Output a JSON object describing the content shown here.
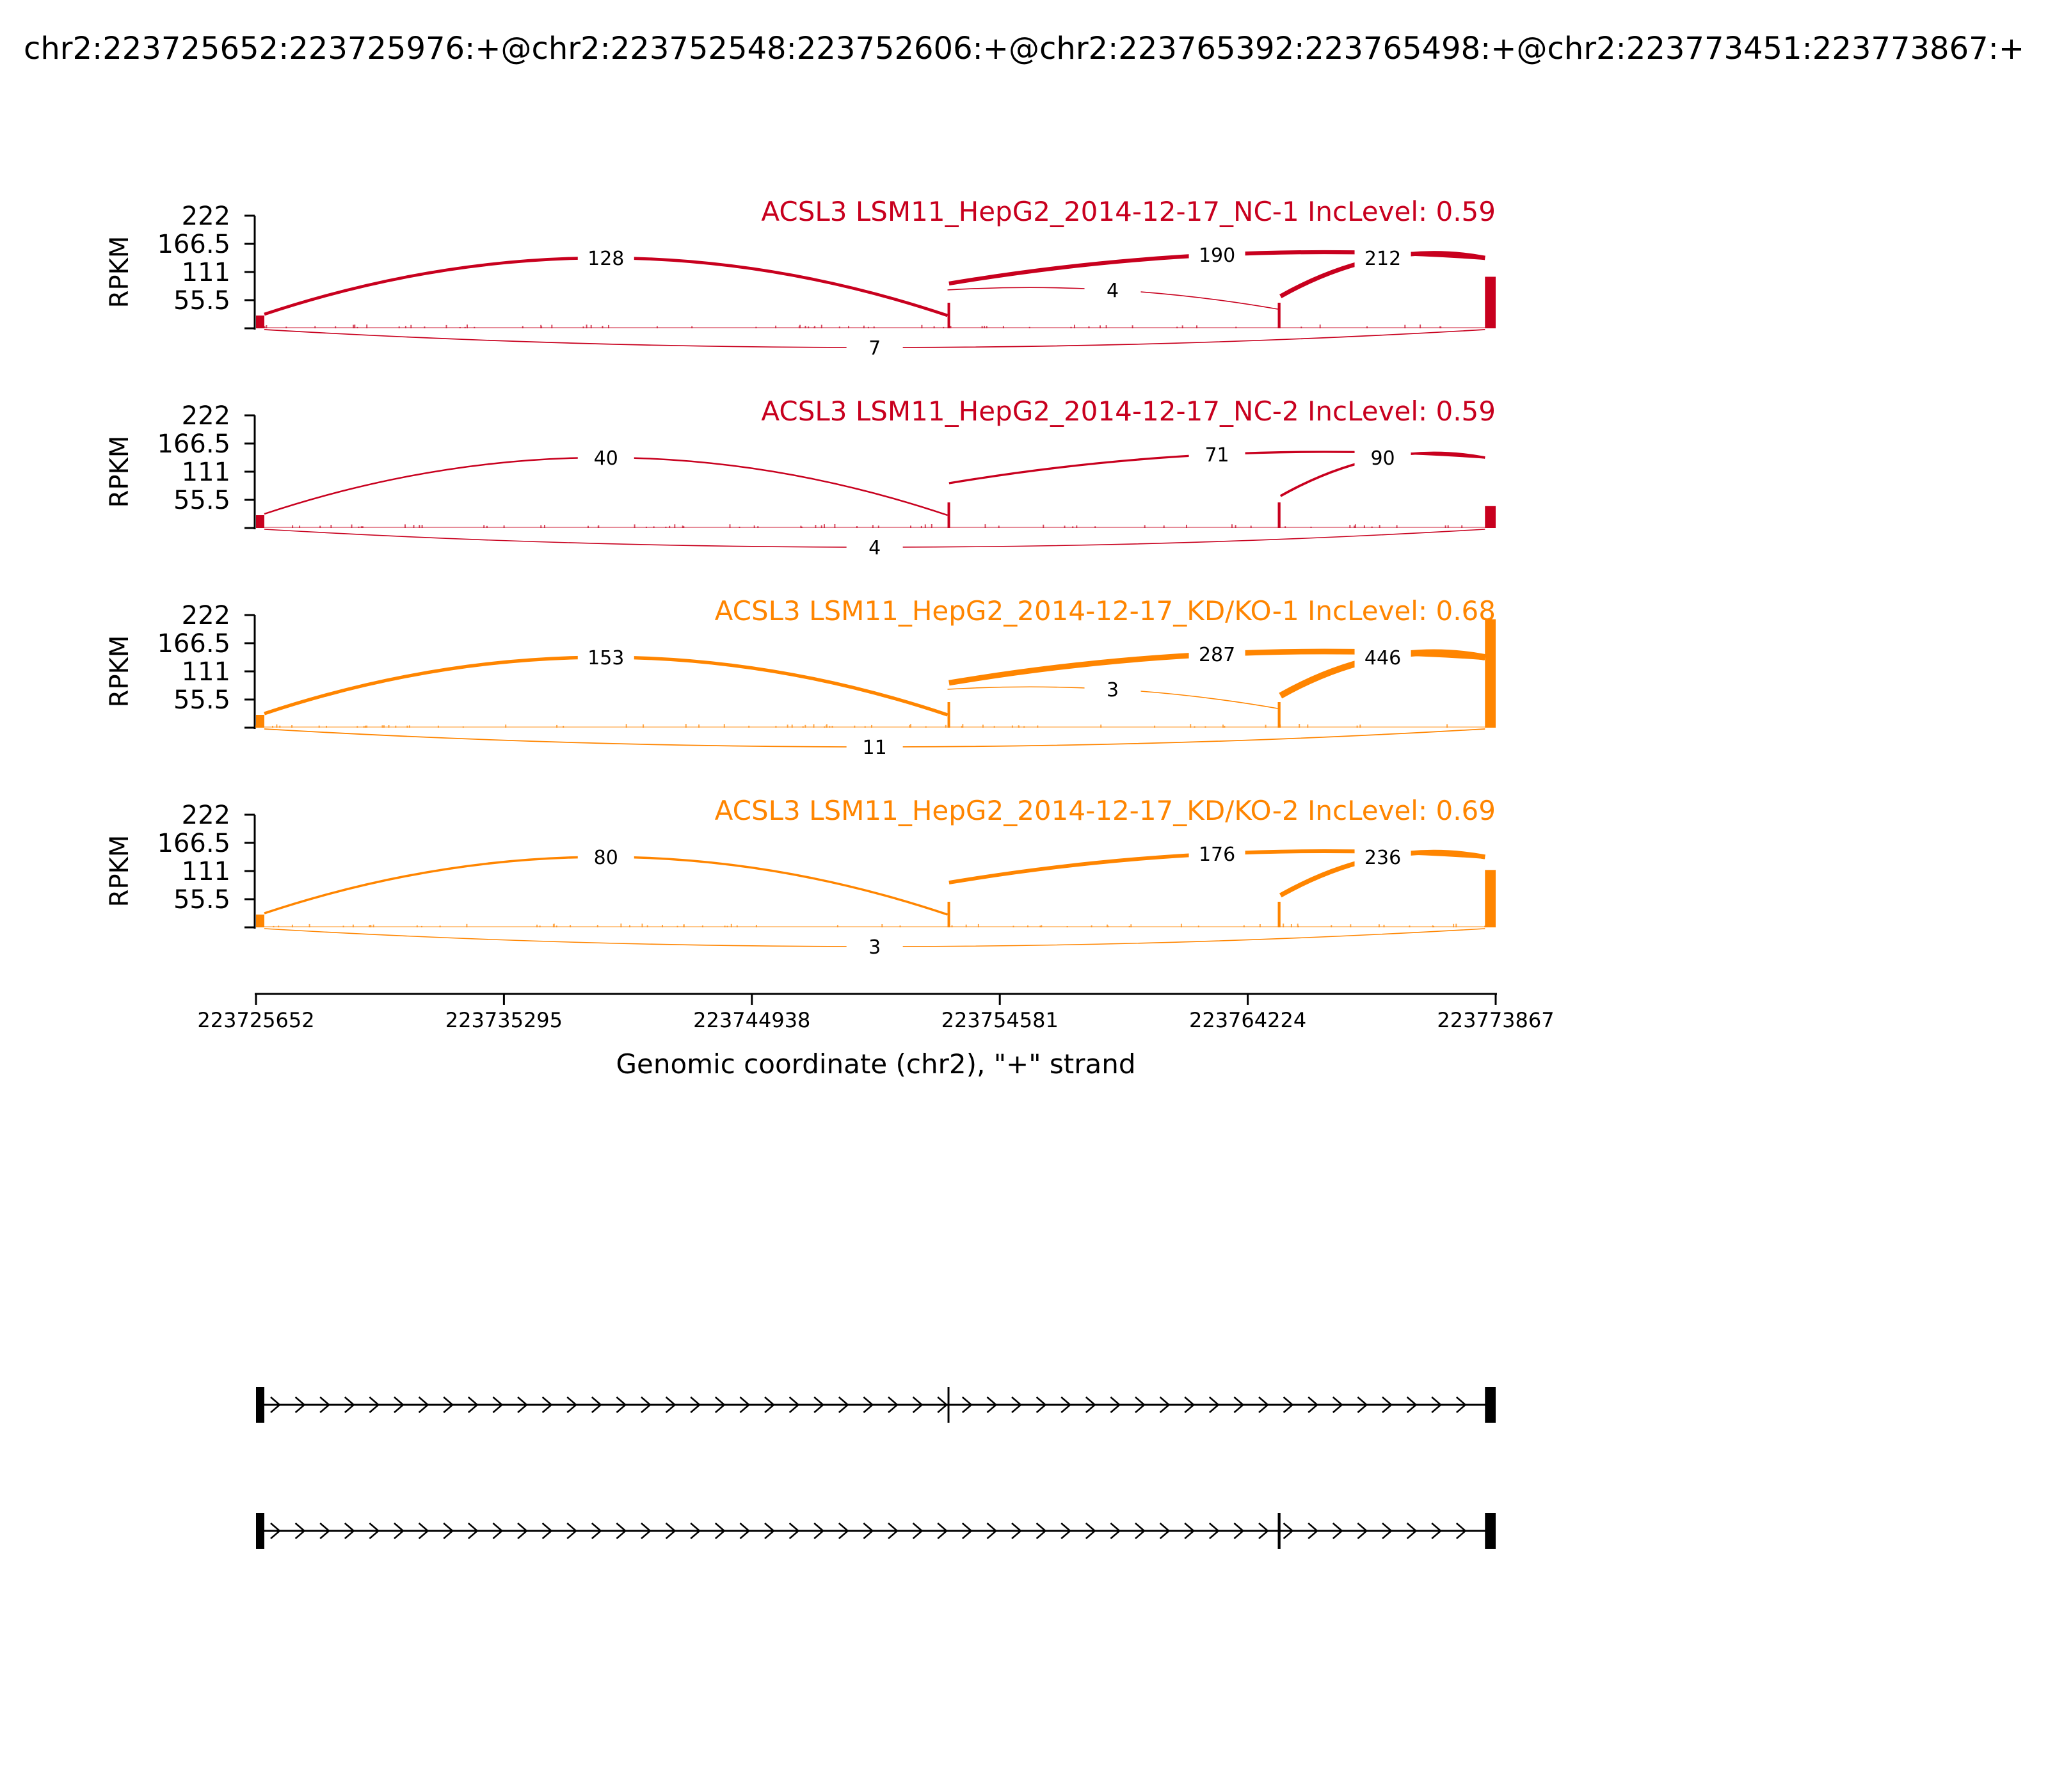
{
  "chart_data": {
    "type": "sashimi",
    "title": "chr2:223725652:223725976:+@chr2:223752548:223752606:+@chr2:223765392:223765498:+@chr2:223773451:223773867:+",
    "xlabel": "Genomic coordinate (chr2), \"+\" strand",
    "ylabel": "RPKM",
    "xlim": [
      223725652,
      223773867
    ],
    "ylim": [
      0,
      222
    ],
    "x_ticks": [
      "223725652",
      "223735295",
      "223744938",
      "223754581",
      "223764224",
      "223773867"
    ],
    "y_ticks": [
      "55.5",
      "111",
      "166.5",
      "222"
    ],
    "exons": [
      {
        "start": 223725652,
        "end": 223725976
      },
      {
        "start": 223752548,
        "end": 223752606
      },
      {
        "start": 223765392,
        "end": 223765498
      },
      {
        "start": 223773451,
        "end": 223773867
      }
    ],
    "colors": {
      "NC": "#c8001e",
      "KD/KO": "#ff8500"
    },
    "series": [
      {
        "name": "ACSL3 LSM11_HepG2_2014-12-17_NC-1 IncLevel: 0.59",
        "group": "NC",
        "junctions": [
          {
            "from": 223725976,
            "to": 223752548,
            "count": 128,
            "side": "above"
          },
          {
            "from": 223752548,
            "to": 223765392,
            "count": 4,
            "side": "above"
          },
          {
            "from": 223752606,
            "to": 223773451,
            "count": 190,
            "side": "above"
          },
          {
            "from": 223765498,
            "to": 223773451,
            "count": 212,
            "side": "above"
          },
          {
            "from": 223725976,
            "to": 223773451,
            "count": 7,
            "side": "below"
          }
        ]
      },
      {
        "name": "ACSL3 LSM11_HepG2_2014-12-17_NC-2 IncLevel: 0.59",
        "group": "NC",
        "junctions": [
          {
            "from": 223725976,
            "to": 223752548,
            "count": 40,
            "side": "above"
          },
          {
            "from": 223752606,
            "to": 223773451,
            "count": 71,
            "side": "above"
          },
          {
            "from": 223765498,
            "to": 223773451,
            "count": 90,
            "side": "above"
          },
          {
            "from": 223725976,
            "to": 223773451,
            "count": 4,
            "side": "below"
          }
        ]
      },
      {
        "name": "ACSL3 LSM11_HepG2_2014-12-17_KD/KO-1 IncLevel: 0.68",
        "group": "KD/KO",
        "junctions": [
          {
            "from": 223725976,
            "to": 223752548,
            "count": 153,
            "side": "above"
          },
          {
            "from": 223752548,
            "to": 223765392,
            "count": 3,
            "side": "above"
          },
          {
            "from": 223752606,
            "to": 223773451,
            "count": 287,
            "side": "above"
          },
          {
            "from": 223765498,
            "to": 223773451,
            "count": 446,
            "side": "above"
          },
          {
            "from": 223725976,
            "to": 223773451,
            "count": 11,
            "side": "below"
          }
        ]
      },
      {
        "name": "ACSL3 LSM11_HepG2_2014-12-17_KD/KO-2 IncLevel: 0.69",
        "group": "KD/KO",
        "junctions": [
          {
            "from": 223725976,
            "to": 223752548,
            "count": 80,
            "side": "above"
          },
          {
            "from": 223752606,
            "to": 223773451,
            "count": 176,
            "side": "above"
          },
          {
            "from": 223765498,
            "to": 223773451,
            "count": 236,
            "side": "above"
          },
          {
            "from": 223725976,
            "to": 223773451,
            "count": 3,
            "side": "below"
          }
        ]
      }
    ],
    "isoforms": [
      {
        "exons": [
          0,
          1,
          3
        ]
      },
      {
        "exons": [
          0,
          2,
          3
        ]
      }
    ]
  }
}
